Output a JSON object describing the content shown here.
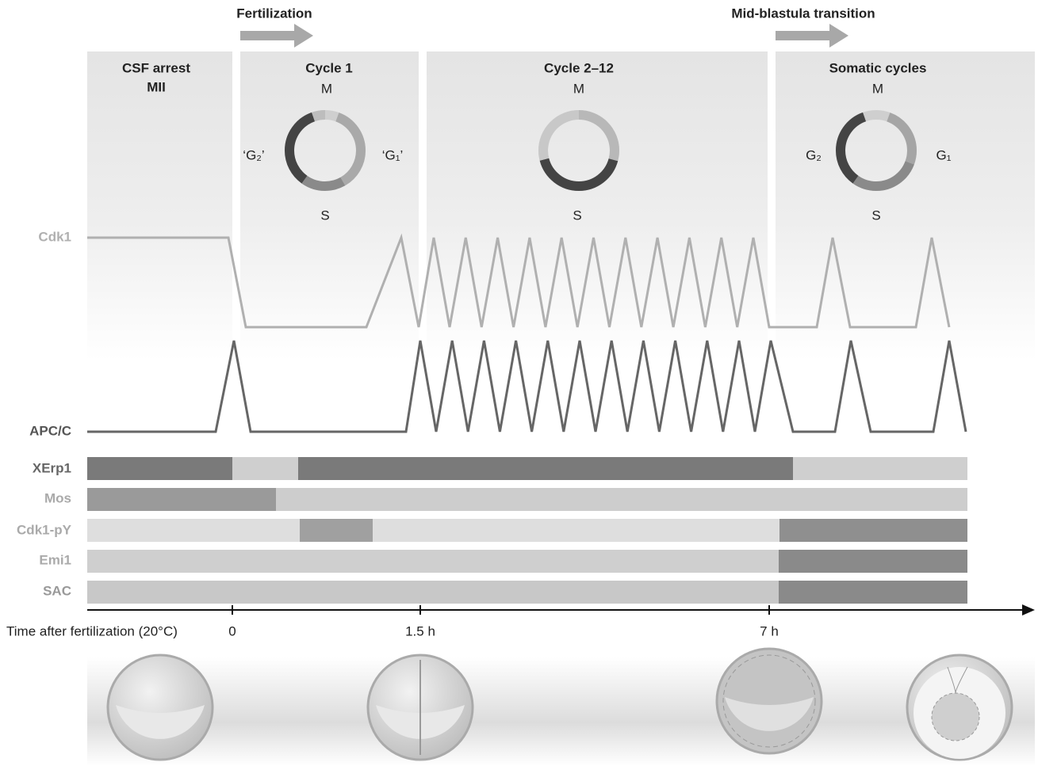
{
  "header": {
    "fertilization": "Fertilization",
    "mbt": "Mid-blastula transition"
  },
  "phases": [
    {
      "title": "CSF arrest",
      "subtitle": "MII"
    },
    {
      "title": "Cycle 1",
      "cycle": {
        "top": "M",
        "left": "‘G₂’",
        "right": "‘G₁’",
        "bottom": "S"
      }
    },
    {
      "title": "Cycle 2–12",
      "cycle": {
        "top": "M",
        "bottom": "S"
      }
    },
    {
      "title": "Somatic cycles",
      "cycle": {
        "top": "M",
        "left": "G₂",
        "right": "G₁",
        "bottom": "S"
      }
    }
  ],
  "traces": [
    "Cdk1",
    "APC/C"
  ],
  "rows": [
    "XErp1",
    "Mos",
    "Cdk1-pY",
    "Emi1",
    "SAC"
  ],
  "axis": {
    "label": "Time after fertilization (20°C)",
    "ticks": [
      "0",
      "1.5 h",
      "7 h"
    ]
  }
}
